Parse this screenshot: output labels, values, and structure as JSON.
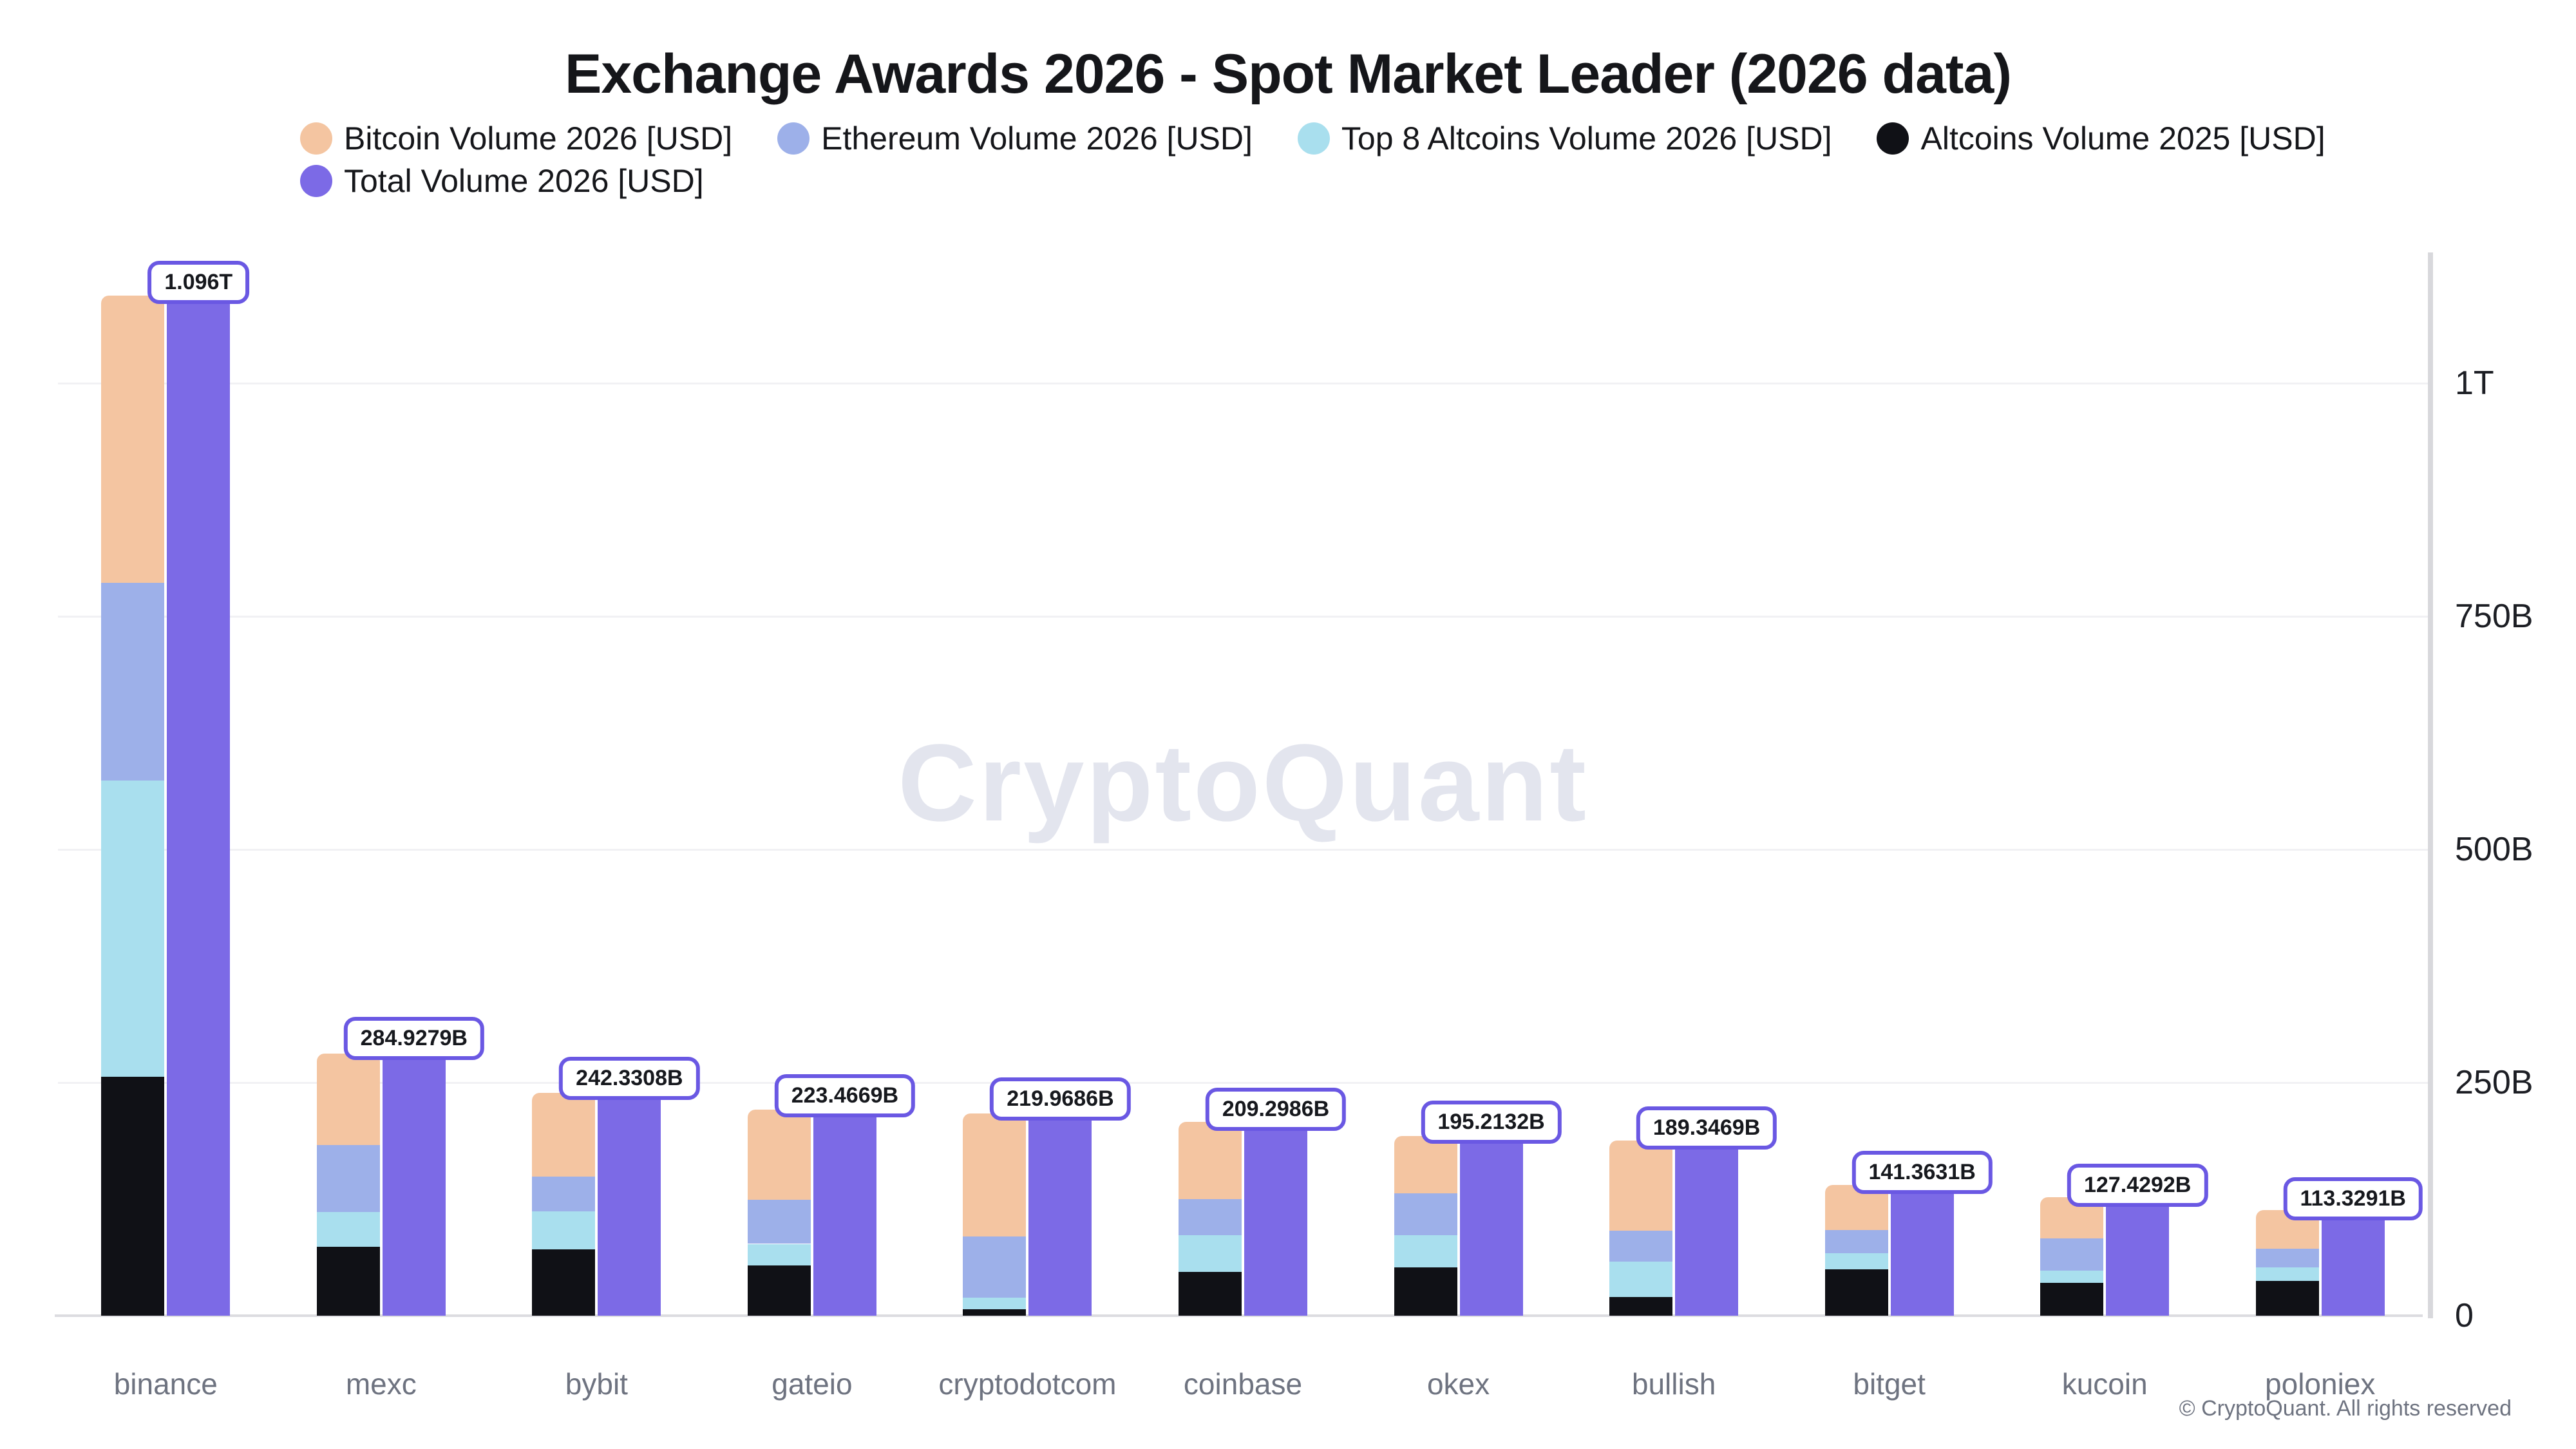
{
  "title": "Exchange Awards 2026 - Spot Market Leader (2026 data)",
  "watermark": "CryptoQuant",
  "footer": "© CryptoQuant. All rights reserved",
  "chart_data": {
    "type": "bar",
    "title": "Exchange Awards 2026 - Spot Market Leader (2026 data)",
    "grid": true,
    "legend_position": "top-left-two-rows",
    "y_axis_side": "right",
    "ylim_billions": [
      0,
      1130
    ],
    "y_ticks": [
      {
        "value": 0,
        "label": "0"
      },
      {
        "value": 250,
        "label": "250B"
      },
      {
        "value": 500,
        "label": "500B"
      },
      {
        "value": 750,
        "label": "750B"
      },
      {
        "value": 1000,
        "label": "1T"
      }
    ],
    "categories": [
      "binance",
      "mexc",
      "bybit",
      "gateio",
      "cryptodotcom",
      "coinbase",
      "okex",
      "bullish",
      "bitget",
      "kucoin",
      "poloniex"
    ],
    "series": [
      {
        "name": "Bitcoin Volume 2026 [USD]",
        "color": "#f4c5a1",
        "role": "stack",
        "values_billions_est": [
          308,
          98,
          90,
          97,
          132,
          83,
          62,
          97,
          48,
          44,
          41
        ]
      },
      {
        "name": "Ethereum Volume 2026 [USD]",
        "color": "#9db0e9",
        "role": "stack",
        "values_billions_est": [
          212,
          72,
          37,
          47,
          66,
          39,
          45,
          33,
          25,
          35,
          20
        ]
      },
      {
        "name": "Top 8 Altcoins Volume 2026 [USD]",
        "color": "#a9dfee",
        "role": "stack",
        "values_billions_est": [
          318,
          37,
          41,
          23,
          12,
          39,
          34,
          38,
          17,
          13,
          15
        ]
      },
      {
        "name": "Altcoins Volume 2025 [USD]",
        "color": "#101116",
        "role": "stack",
        "values_billions_est": [
          256,
          74,
          71,
          54,
          7,
          47,
          52,
          20,
          50,
          35,
          37
        ]
      },
      {
        "name": "Total Volume 2026 [USD]",
        "color": "#7c6ae6",
        "role": "total",
        "values_billions": [
          1096,
          284.9279,
          242.3308,
          223.4669,
          219.9686,
          209.2986,
          195.2132,
          189.3469,
          141.3631,
          127.4292,
          113.3291
        ]
      }
    ],
    "stack_order_bottom_to_top": [
      "Altcoins Volume 2025 [USD]",
      "Top 8 Altcoins Volume 2026 [USD]",
      "Ethereum Volume 2026 [USD]",
      "Bitcoin Volume 2026 [USD]"
    ],
    "total_labels": [
      "1.096T",
      "284.9279B",
      "242.3308B",
      "223.4669B",
      "219.9686B",
      "209.2986B",
      "195.2132B",
      "189.3469B",
      "141.3631B",
      "127.4292B",
      "113.3291B"
    ],
    "colors": {
      "label_box_border": "#6a58e3",
      "gridline": "#f1f1f4",
      "axis_line": "#d8d8dc",
      "x_label": "#6e7380",
      "y_label": "#1c1e24",
      "watermark": "#e3e5ee"
    }
  }
}
